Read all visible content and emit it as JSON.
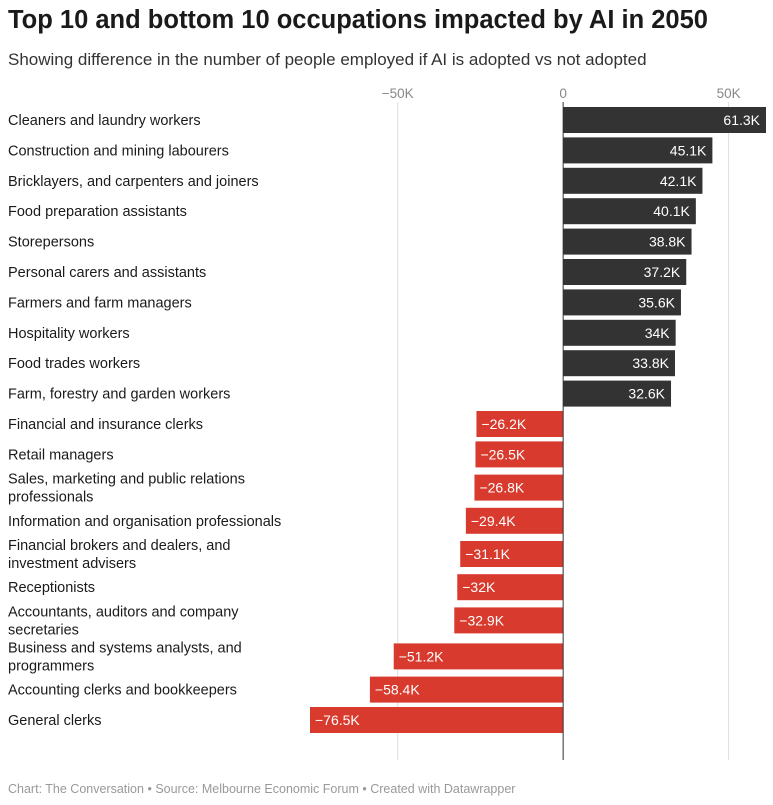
{
  "title": "Top 10 and bottom 10 occupations impacted by AI in 2050",
  "subtitle": "Showing difference in the number of people employed if AI is adopted vs not adopted",
  "footer": {
    "chart_by": "Chart: The Conversation",
    "source": "Source: Melbourne Economic Forum",
    "created_with": "Created with Datawrapper",
    "separator": "•"
  },
  "colors": {
    "positive": "#333333",
    "negative": "#d93a2e",
    "grid": "#dddddd",
    "zero_line": "#333333"
  },
  "chart_data": {
    "type": "bar",
    "orientation": "horizontal",
    "grid": true,
    "xlim": [
      -76500,
      61300
    ],
    "x_ticks": [
      {
        "value": -50000,
        "label": "−50K"
      },
      {
        "value": 0,
        "label": "0"
      },
      {
        "value": 50000,
        "label": "50K"
      }
    ],
    "categories": [
      "Cleaners and laundry workers",
      "Construction and mining labourers",
      "Bricklayers, and carpenters and joiners",
      "Food preparation assistants",
      "Storepersons",
      "Personal carers and assistants",
      "Farmers and farm managers",
      "Hospitality workers",
      "Food trades workers",
      "Farm, forestry and garden workers",
      "Financial and insurance clerks",
      "Retail managers",
      "Sales, marketing and public relations professionals",
      "Information and organisation professionals",
      "Financial brokers and dealers, and investment advisers",
      "Receptionists",
      "Accountants, auditors and company secretaries",
      "Business and systems analysts, and programmers",
      "Accounting clerks and bookkeepers",
      "General clerks"
    ],
    "category_lines": [
      [
        "Cleaners and laundry workers"
      ],
      [
        "Construction and mining labourers"
      ],
      [
        "Bricklayers, and carpenters and joiners"
      ],
      [
        "Food preparation assistants"
      ],
      [
        "Storepersons"
      ],
      [
        "Personal carers and assistants"
      ],
      [
        "Farmers and farm managers"
      ],
      [
        "Hospitality workers"
      ],
      [
        "Food trades workers"
      ],
      [
        "Farm, forestry and garden workers"
      ],
      [
        "Financial and insurance clerks"
      ],
      [
        "Retail managers"
      ],
      [
        "Sales, marketing and public relations",
        "professionals"
      ],
      [
        "Information and organisation professionals"
      ],
      [
        "Financial brokers and dealers, and",
        "investment advisers"
      ],
      [
        "Receptionists"
      ],
      [
        "Accountants, auditors and company",
        "secretaries"
      ],
      [
        "Business and systems analysts, and",
        "programmers"
      ],
      [
        "Accounting clerks and bookkeepers"
      ],
      [
        "General clerks"
      ]
    ],
    "values": [
      61300,
      45100,
      42100,
      40100,
      38800,
      37200,
      35600,
      34000,
      33800,
      32600,
      -26200,
      -26500,
      -26800,
      -29400,
      -31100,
      -32000,
      -32900,
      -51200,
      -58400,
      -76500
    ],
    "value_labels": [
      "61.3K",
      "45.1K",
      "42.1K",
      "40.1K",
      "38.8K",
      "37.2K",
      "35.6K",
      "34K",
      "33.8K",
      "32.6K",
      "−26.2K",
      "−26.5K",
      "−26.8K",
      "−29.4K",
      "−31.1K",
      "−32K",
      "−32.9K",
      "−51.2K",
      "−58.4K",
      "−76.5K"
    ]
  }
}
